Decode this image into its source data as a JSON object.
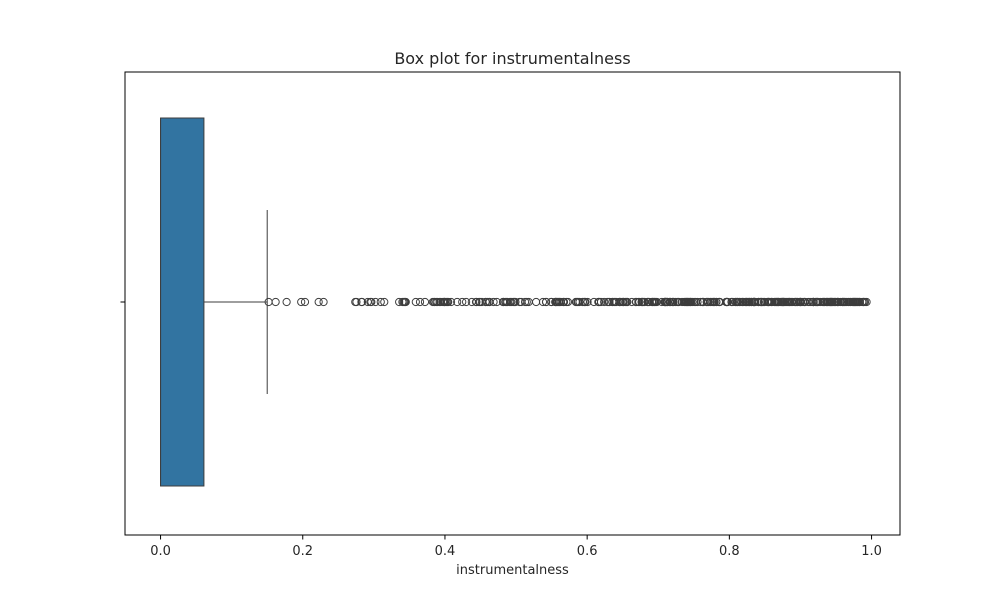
{
  "chart_data": {
    "type": "box",
    "title": "Box plot for instrumentalness",
    "xlabel": "instrumentalness",
    "ylabel": "",
    "orientation": "horizontal",
    "xlim": [
      -0.05,
      1.04
    ],
    "xticks": [
      0.0,
      0.2,
      0.4,
      0.6,
      0.8,
      1.0
    ],
    "xtick_labels": [
      "0.0",
      "0.2",
      "0.4",
      "0.6",
      "0.8",
      "1.0"
    ],
    "box": {
      "whisker_low": 0.0,
      "q1": 0.0,
      "median": 0.0,
      "q3": 0.061,
      "whisker_high": 0.15
    },
    "outlier_range": [
      0.152,
      0.993
    ],
    "grid": false,
    "colors": {
      "box_fill": "#3274a1",
      "line": "#3d3d3d",
      "axis": "#000000"
    }
  }
}
